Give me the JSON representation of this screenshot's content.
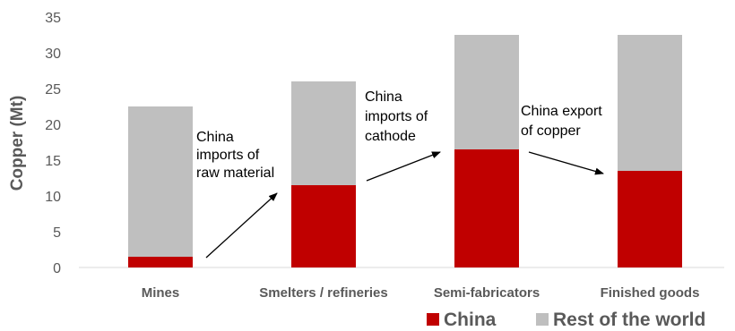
{
  "chart_data": {
    "type": "bar",
    "stacked": true,
    "categories": [
      "Mines",
      "Smelters / refineries",
      "Semi-fabricators",
      "Finished goods"
    ],
    "series": [
      {
        "name": "China",
        "color": "#C00000",
        "values": [
          1.5,
          11.5,
          16.5,
          13.5
        ]
      },
      {
        "name": "Rest of the world",
        "color": "#BFBFBF",
        "values": [
          21,
          14.5,
          16,
          19
        ]
      }
    ],
    "ylabel": "Copper (Mt)",
    "xlabel": "",
    "ylim": [
      0,
      35
    ],
    "yticks": [
      0,
      5,
      10,
      15,
      20,
      25,
      30,
      35
    ],
    "grid": false,
    "legend_position": "bottom-right",
    "annotations": [
      {
        "lines": [
          "China",
          "imports of",
          "raw material"
        ]
      },
      {
        "lines": [
          "China",
          "imports of",
          "cathode"
        ]
      },
      {
        "lines": [
          "China export",
          "of copper"
        ]
      }
    ]
  }
}
